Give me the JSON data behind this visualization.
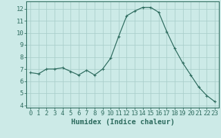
{
  "x": [
    0,
    1,
    2,
    3,
    4,
    5,
    6,
    7,
    8,
    9,
    10,
    11,
    12,
    13,
    14,
    15,
    16,
    17,
    18,
    19,
    20,
    21,
    22,
    23
  ],
  "y": [
    6.7,
    6.6,
    7.0,
    7.0,
    7.1,
    6.8,
    6.5,
    6.9,
    6.5,
    7.0,
    7.9,
    9.7,
    11.4,
    11.8,
    12.1,
    12.1,
    11.7,
    10.1,
    8.7,
    7.5,
    6.5,
    5.5,
    4.8,
    4.3
  ],
  "line_color": "#2d6b5e",
  "marker": "+",
  "marker_size": 3,
  "bg_color": "#cceae7",
  "grid_color": "#aacfcb",
  "xlabel": "Humidex (Indice chaleur)",
  "xlim": [
    -0.5,
    23.5
  ],
  "ylim": [
    3.8,
    12.6
  ],
  "yticks": [
    4,
    5,
    6,
    7,
    8,
    9,
    10,
    11,
    12
  ],
  "xticks": [
    0,
    1,
    2,
    3,
    4,
    5,
    6,
    7,
    8,
    9,
    10,
    11,
    12,
    13,
    14,
    15,
    16,
    17,
    18,
    19,
    20,
    21,
    22,
    23
  ],
  "tick_fontsize": 6.5,
  "xlabel_fontsize": 7.5,
  "axis_color": "#2d6b5e",
  "tick_color": "#2d6b5e",
  "spine_color": "#2d6b5e"
}
